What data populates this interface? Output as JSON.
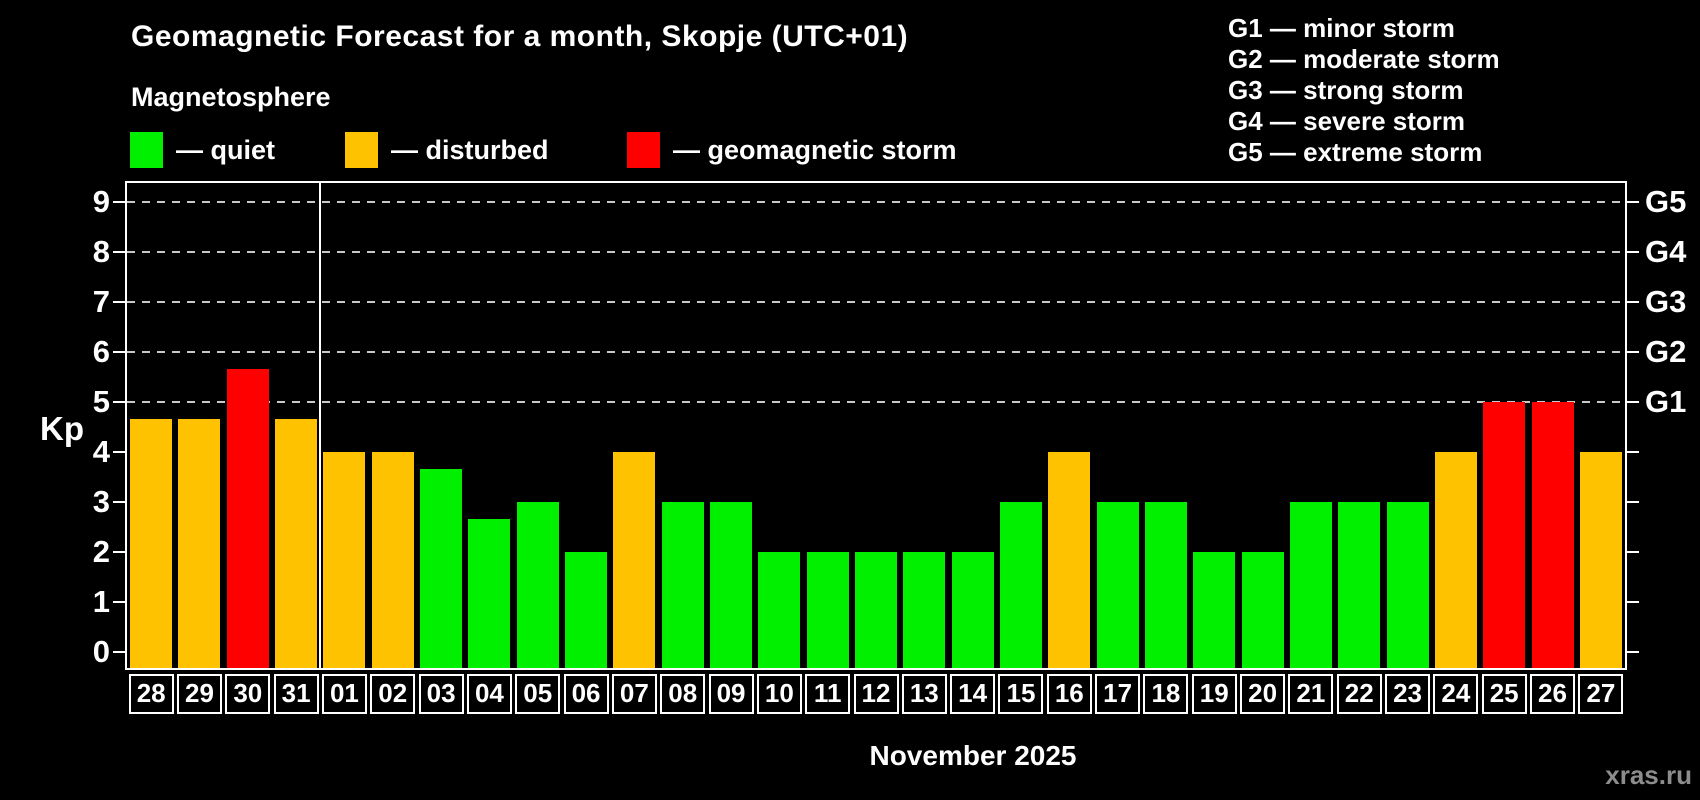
{
  "title": "Geomagnetic Forecast for a month, Skopje (UTC+01)",
  "subtitle": "Magnetosphere",
  "legend": {
    "quiet": "— quiet",
    "disturbed": "— disturbed",
    "storm": "— geomagnetic storm"
  },
  "g_legend": [
    "G1 — minor storm",
    "G2 — moderate storm",
    "G3 — strong storm",
    "G4 — severe storm",
    "G5 — extreme storm"
  ],
  "axis": {
    "kp_label": "Kp"
  },
  "xlabel": "November 2025",
  "watermark": "xras.ru",
  "colors": {
    "quiet": "#00f000",
    "disturbed": "#ffc200",
    "storm": "#ff0000",
    "grid": "#c8c8c8",
    "axis": "#ffffff",
    "watermark": "#8d8d8d"
  },
  "chart_data": {
    "type": "bar",
    "title": "Geomagnetic Forecast for a month, Skopje (UTC+01)",
    "xlabel": "November 2025",
    "ylabel": "Kp",
    "ylim": [
      -0.32,
      9.38
    ],
    "y_ticks": [
      0,
      1,
      2,
      3,
      4,
      5,
      6,
      7,
      8,
      9
    ],
    "gridlines_kp": [
      5,
      6,
      7,
      8,
      9
    ],
    "g_labels": {
      "5": "G1",
      "6": "G2",
      "7": "G3",
      "8": "G4",
      "9": "G5"
    },
    "month_separator_index": 4,
    "categories": [
      "28",
      "29",
      "30",
      "31",
      "01",
      "02",
      "03",
      "04",
      "05",
      "06",
      "07",
      "08",
      "09",
      "10",
      "11",
      "12",
      "13",
      "14",
      "15",
      "16",
      "17",
      "18",
      "19",
      "20",
      "21",
      "22",
      "23",
      "24",
      "25",
      "26",
      "27"
    ],
    "values": [
      4.67,
      4.67,
      5.67,
      4.67,
      4,
      4,
      3.67,
      2.67,
      3,
      2,
      4,
      3,
      3,
      2,
      2,
      2,
      2,
      2,
      3,
      4,
      3,
      3,
      2,
      2,
      3,
      3,
      3,
      4,
      5,
      5,
      4
    ],
    "statuses": [
      "disturbed",
      "disturbed",
      "storm",
      "disturbed",
      "disturbed",
      "disturbed",
      "quiet",
      "quiet",
      "quiet",
      "quiet",
      "disturbed",
      "quiet",
      "quiet",
      "quiet",
      "quiet",
      "quiet",
      "quiet",
      "quiet",
      "quiet",
      "disturbed",
      "quiet",
      "quiet",
      "quiet",
      "quiet",
      "quiet",
      "quiet",
      "quiet",
      "disturbed",
      "storm",
      "storm",
      "disturbed"
    ],
    "legend_entries": [
      {
        "status": "quiet",
        "label": "— quiet"
      },
      {
        "status": "disturbed",
        "label": "— disturbed"
      },
      {
        "status": "storm",
        "label": "— geomagnetic storm"
      }
    ]
  }
}
